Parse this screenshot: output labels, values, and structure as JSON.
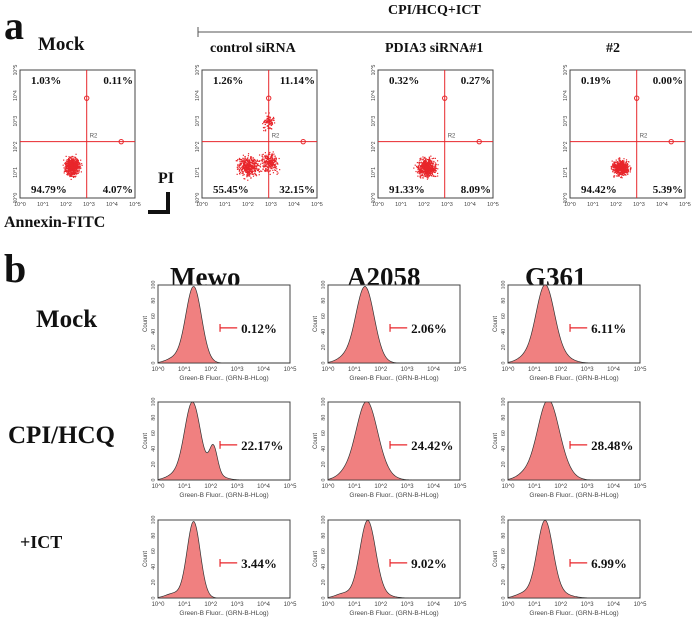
{
  "panel_a": {
    "letter": "a",
    "mock_label": "Mock",
    "group_label": "CPI/HCQ+ICT",
    "sub_labels": [
      "control siRNA",
      "PDIA3 siRNA#1",
      "#2"
    ],
    "x_axis_label": "Annexin-FITC",
    "y_axis_label": "PI",
    "gate_label": "R2"
  },
  "panel_b": {
    "letter": "b",
    "columns": [
      "Mewo",
      "A2058",
      "G361"
    ],
    "rows": [
      "Mock",
      "CPI/HCQ",
      "+ICT"
    ],
    "x_axis_label": "Green-B Fluor.. (GRN-B-HLog)",
    "y_axis_label": "Count"
  },
  "colors": {
    "data": "#e8262b",
    "fill": "#f08080",
    "text": "#111111"
  },
  "chart_data": [
    {
      "type": "scatter",
      "title": "Mock",
      "x_scale": "log",
      "y_scale": "log",
      "xlim": [
        1,
        100000
      ],
      "ylim": [
        1,
        100000
      ],
      "x_ticks": [
        "10^0",
        "10^1",
        "10^2",
        "10^3",
        "10^4",
        "10^5"
      ],
      "y_ticks": [
        "10^0",
        "10^1",
        "10^2",
        "10^3",
        "10^4",
        "10^5"
      ],
      "quadrants": {
        "upper_left": "1.03%",
        "upper_right": "0.11%",
        "lower_left": "94.79%",
        "lower_right": "4.07%"
      }
    },
    {
      "type": "scatter",
      "title": "control siRNA",
      "x_scale": "log",
      "y_scale": "log",
      "xlim": [
        1,
        100000
      ],
      "ylim": [
        1,
        100000
      ],
      "quadrants": {
        "upper_left": "1.26%",
        "upper_right": "11.14%",
        "lower_left": "55.45%",
        "lower_right": "32.15%"
      }
    },
    {
      "type": "scatter",
      "title": "PDIA3 siRNA#1",
      "x_scale": "log",
      "y_scale": "log",
      "xlim": [
        1,
        100000
      ],
      "ylim": [
        1,
        100000
      ],
      "quadrants": {
        "upper_left": "0.32%",
        "upper_right": "0.27%",
        "lower_left": "91.33%",
        "lower_right": "8.09%"
      }
    },
    {
      "type": "scatter",
      "title": "#2",
      "x_scale": "log",
      "y_scale": "log",
      "xlim": [
        1,
        100000
      ],
      "ylim": [
        1,
        100000
      ],
      "quadrants": {
        "upper_left": "0.19%",
        "upper_right": "0.00%",
        "lower_left": "94.42%",
        "lower_right": "5.39%"
      }
    },
    {
      "type": "area",
      "x_scale": "log",
      "xlim": [
        1,
        100000
      ],
      "ylim": [
        0,
        100
      ],
      "x_ticks": [
        "10^0",
        "10^1",
        "10^2",
        "10^3",
        "10^4",
        "10^5"
      ],
      "y_ticks": [
        "0",
        "20",
        "40",
        "60",
        "80",
        "100"
      ],
      "histograms": [
        {
          "row": "Mock",
          "column": "Mewo",
          "gated_percent": "0.12%"
        },
        {
          "row": "Mock",
          "column": "A2058",
          "gated_percent": "2.06%"
        },
        {
          "row": "Mock",
          "column": "G361",
          "gated_percent": "6.11%"
        },
        {
          "row": "CPI/HCQ",
          "column": "Mewo",
          "gated_percent": "22.17%"
        },
        {
          "row": "CPI/HCQ",
          "column": "A2058",
          "gated_percent": "24.42%"
        },
        {
          "row": "CPI/HCQ",
          "column": "G361",
          "gated_percent": "28.48%"
        },
        {
          "row": "+ICT",
          "column": "Mewo",
          "gated_percent": "3.44%"
        },
        {
          "row": "+ICT",
          "column": "A2058",
          "gated_percent": "9.02%"
        },
        {
          "row": "+ICT",
          "column": "G361",
          "gated_percent": "6.99%"
        }
      ]
    }
  ]
}
